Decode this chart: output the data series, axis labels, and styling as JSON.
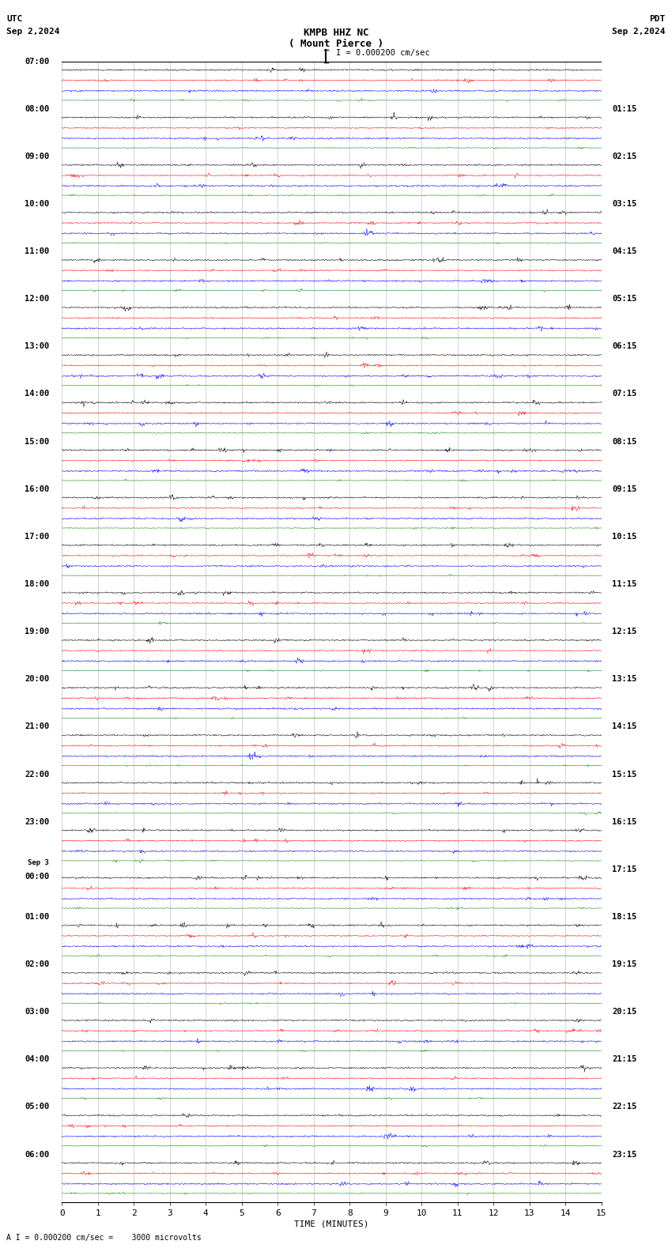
{
  "title_line1": "KMPB HHZ NC",
  "title_line2": "( Mount Pierce )",
  "scale_text": "I = 0.000200 cm/sec",
  "footer_text": "A I = 0.000200 cm/sec =    3000 microvolts",
  "utc_label": "UTC",
  "date_left": "Sep 2,2024",
  "date_right": "Sep 2,2024",
  "pdt_label": "PDT",
  "xlabel": "TIME (MINUTES)",
  "left_times": [
    "07:00",
    "08:00",
    "09:00",
    "10:00",
    "11:00",
    "12:00",
    "13:00",
    "14:00",
    "15:00",
    "16:00",
    "17:00",
    "18:00",
    "19:00",
    "20:00",
    "21:00",
    "22:00",
    "23:00",
    "00:00",
    "01:00",
    "02:00",
    "03:00",
    "04:00",
    "05:00",
    "06:00"
  ],
  "left_times_special": [
    17
  ],
  "right_times": [
    "01:15",
    "02:15",
    "03:15",
    "04:15",
    "05:15",
    "06:15",
    "07:15",
    "08:15",
    "09:15",
    "10:15",
    "11:15",
    "12:15",
    "13:15",
    "14:15",
    "15:15",
    "16:15",
    "17:15",
    "18:15",
    "19:15",
    "20:15",
    "21:15",
    "22:15",
    "23:15"
  ],
  "num_rows": 24,
  "traces_per_row": 4,
  "trace_colors": [
    "black",
    "red",
    "blue",
    "green"
  ],
  "background_color": "white",
  "noise_scales": [
    0.28,
    0.22,
    0.28,
    0.12
  ],
  "fig_width": 8.5,
  "fig_height": 15.84,
  "dpi": 100,
  "x_ticks": [
    0,
    1,
    2,
    3,
    4,
    5,
    6,
    7,
    8,
    9,
    10,
    11,
    12,
    13,
    14,
    15
  ],
  "x_tick_labels": [
    "0",
    "1",
    "2",
    "3",
    "4",
    "5",
    "6",
    "7",
    "8",
    "9",
    "10",
    "11",
    "12",
    "13",
    "14",
    "15"
  ],
  "n_points": 1800,
  "t_minutes": 15.0
}
